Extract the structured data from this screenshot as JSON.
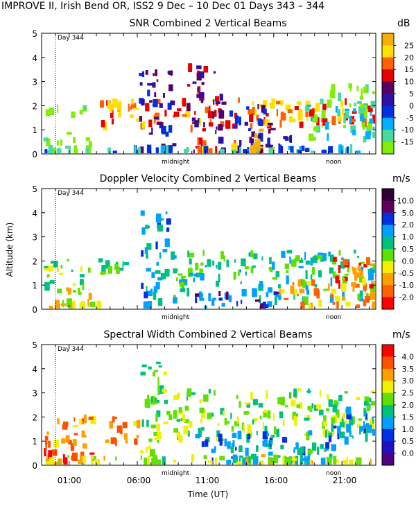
{
  "header": {
    "title": "IMPROVE II,  Irish Bend OR, ISS2    9 Dec – 10 Dec 01 Days 343 – 344"
  },
  "chart_data": [
    {
      "type": "heatmap",
      "title": "SNR Combined 2 Vertical Beams",
      "colorbar_unit": "dB",
      "colorbar_ticks": [
        "25",
        "20",
        "15",
        "10",
        "5",
        "0",
        "-5",
        "-10",
        "-15"
      ],
      "colorbar_values": [
        25,
        20,
        15,
        10,
        5,
        0,
        -5,
        -10,
        -15
      ],
      "colorbar_colors": [
        "#f5b000",
        "#ffe000",
        "#ff6000",
        "#e80000",
        "#5a0060",
        "#3010a0",
        "#0030e0",
        "#00b0ff",
        "#48d8a0",
        "#80f000"
      ],
      "ylim": [
        0,
        5
      ],
      "yticks": [
        "0",
        "1",
        "2",
        "3",
        "4",
        "5"
      ],
      "day_marker": "Day 344",
      "annotations": [
        "midnight",
        "noon"
      ]
    },
    {
      "type": "heatmap",
      "title": "Doppler Velocity Combined 2 Vertical Beams",
      "colorbar_unit": "m/s",
      "colorbar_ticks": [
        "10.0",
        "5.0",
        "2.0",
        "1.0",
        "0.5",
        "0.0",
        "-0.5",
        "-1.0",
        "-2.0"
      ],
      "colorbar_values": [
        10,
        5,
        2,
        1,
        0.5,
        0,
        -0.5,
        -1,
        -2
      ],
      "colorbar_colors": [
        "#300030",
        "#600060",
        "#0030e0",
        "#00a0ff",
        "#00c080",
        "#60e000",
        "#f0f000",
        "#ffa000",
        "#ff6000",
        "#ff0000"
      ],
      "ylabel": "Altitude (km)",
      "ylim": [
        0,
        5
      ],
      "yticks": [
        "0",
        "1",
        "2",
        "3",
        "4",
        "5"
      ],
      "day_marker": "Day 344",
      "annotations": [
        "midnight",
        "noon"
      ]
    },
    {
      "type": "heatmap",
      "title": "Spectral Width Combined 2 Vertical Beams",
      "colorbar_unit": "m/s",
      "colorbar_ticks": [
        "4.0",
        "3.5",
        "3.0",
        "2.5",
        "2.0",
        "1.5",
        "1.0",
        "0.5",
        "0.0"
      ],
      "colorbar_values": [
        4,
        3.5,
        3,
        2.5,
        2,
        1.5,
        1,
        0.5,
        0
      ],
      "colorbar_colors": [
        "#ff0000",
        "#ff5000",
        "#ffa000",
        "#f0f000",
        "#60e000",
        "#00c080",
        "#00a0ff",
        "#0030e0",
        "#2010c0",
        "#500080"
      ],
      "ylim": [
        0,
        5
      ],
      "yticks": [
        "0",
        "1",
        "2",
        "3",
        "4",
        "5"
      ],
      "day_marker": "Day 344",
      "annotations": [
        "midnight",
        "noon"
      ],
      "xlabel": "Time (UT)",
      "xticks": [
        "01:00",
        "06:00",
        "11:00",
        "16:00",
        "21:00"
      ]
    }
  ]
}
